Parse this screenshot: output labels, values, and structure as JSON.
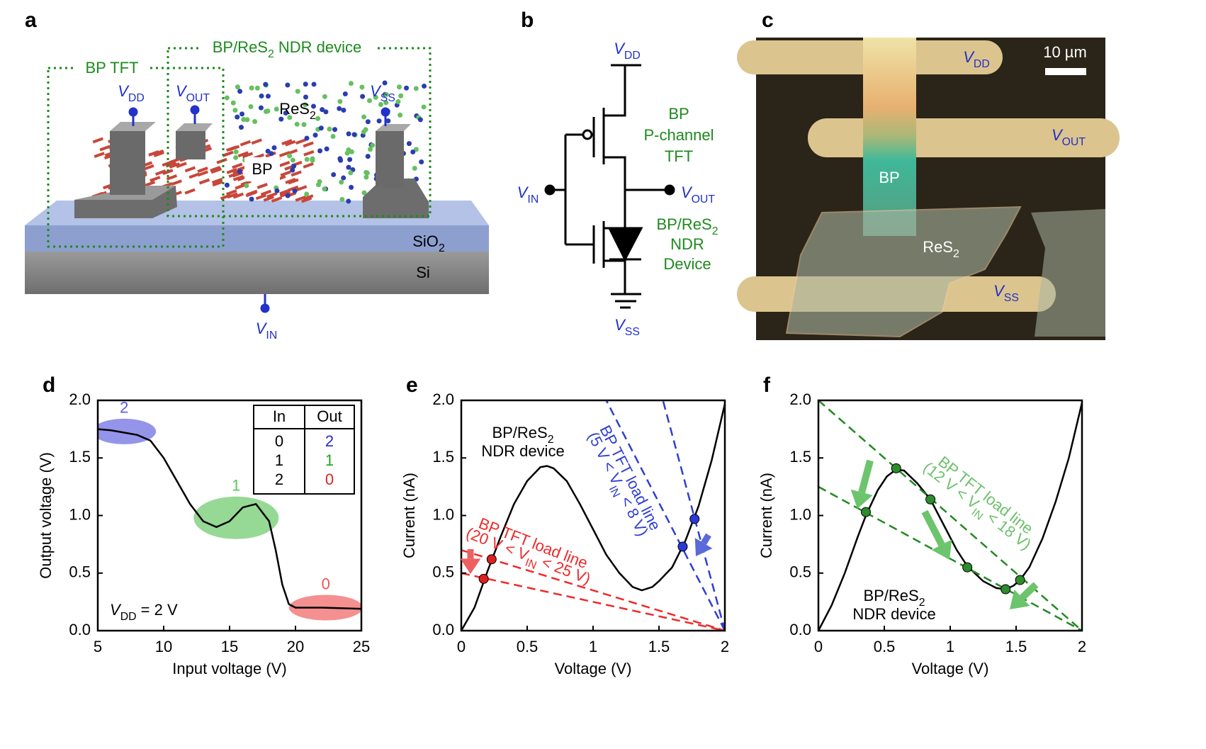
{
  "panel_labels": [
    "a",
    "b",
    "c",
    "d",
    "e",
    "f"
  ],
  "diagram_a": {
    "bp_tft": "BP TFT",
    "ndr_device": [
      "BP/ReS",
      "2",
      " NDR device"
    ],
    "vdd": [
      "V",
      "DD"
    ],
    "vout": [
      "V",
      "OUT"
    ],
    "vss": [
      "V",
      "SS"
    ],
    "res2": [
      "ReS",
      "2"
    ],
    "bp": "BP",
    "sio2": [
      "SiO",
      "2"
    ],
    "si": "Si",
    "vin": [
      "V",
      "IN"
    ]
  },
  "circuit_b": {
    "vdd": [
      "V",
      "DD"
    ],
    "tft_lines": [
      "BP",
      "P-channel",
      "TFT"
    ],
    "vin": [
      "V",
      "IN"
    ],
    "vout": [
      "V",
      "OUT"
    ],
    "ndr_lines": [
      [
        "BP/ReS",
        "2"
      ],
      "NDR",
      "Device"
    ],
    "vss": [
      "V",
      "SS"
    ]
  },
  "micrograph_c": {
    "vdd": [
      "V",
      "DD"
    ],
    "scale_bar": "10 µm",
    "vout": [
      "V",
      "OUT"
    ],
    "bp": "BP",
    "res2": [
      "ReS",
      "2"
    ],
    "vss": [
      "V",
      "SS"
    ]
  },
  "chart_data": [
    {
      "type": "line",
      "x_label": "Input voltage (V)",
      "y_label": "Output voltage (V)",
      "color": "#000000",
      "x": [
        5,
        6,
        7,
        8,
        9,
        10,
        11,
        12,
        13,
        14,
        15,
        16,
        17,
        18,
        18.5,
        19,
        19.5,
        20,
        22,
        25
      ],
      "values": [
        1.75,
        1.74,
        1.72,
        1.7,
        1.65,
        1.5,
        1.3,
        1.1,
        0.95,
        0.9,
        0.95,
        1.07,
        1.1,
        0.95,
        0.7,
        0.4,
        0.23,
        0.2,
        0.2,
        0.19
      ],
      "xlim": [
        5,
        25
      ],
      "ylim": [
        0,
        2
      ],
      "xticks": [
        5,
        10,
        15,
        20,
        25
      ],
      "yticks": [
        {
          "value": 0,
          "label": "0.0"
        },
        {
          "value": 0.5,
          "label": "0.5"
        },
        {
          "value": 1,
          "label": "1.0"
        },
        {
          "value": 1.5,
          "label": "1.5"
        },
        {
          "value": 2,
          "label": "2.0"
        }
      ],
      "highlights": [
        {
          "label": "2",
          "x": 7,
          "y": 1.73,
          "color": "#5a5ae0"
        },
        {
          "label": "1",
          "x": 15.5,
          "y": 0.98,
          "color": "#5cc45c"
        },
        {
          "label": "0",
          "x": 22.3,
          "y": 0.2,
          "color": "#ee5555"
        }
      ],
      "annotation": [
        "V",
        "DD",
        " = 2 V"
      ],
      "table": {
        "header": [
          "In",
          "Out"
        ],
        "rows": [
          [
            "0",
            "2"
          ],
          [
            "1",
            "1"
          ],
          [
            "2",
            "0"
          ]
        ],
        "out_colors": [
          "#2a2ad0",
          "#22a022",
          "#dd2222"
        ]
      }
    },
    {
      "type": "line",
      "x_label": "Voltage (V)",
      "y_label": "Current (nA)",
      "xlim": [
        0,
        2
      ],
      "ylim": [
        0,
        2
      ],
      "xticks": [
        0,
        0.5,
        1,
        1.5,
        2
      ],
      "yticks": [
        {
          "value": 0,
          "label": "0.0"
        },
        {
          "value": 0.5,
          "label": "0.5"
        },
        {
          "value": 1,
          "label": "1.0"
        },
        {
          "value": 1.5,
          "label": "1.5"
        },
        {
          "value": 2,
          "label": "2.0"
        }
      ],
      "series": [
        {
          "style": "solid",
          "color": "#000000",
          "x": [
            0,
            0.1,
            0.2,
            0.3,
            0.4,
            0.5,
            0.6,
            0.65,
            0.7,
            0.8,
            0.9,
            1.0,
            1.1,
            1.2,
            1.3,
            1.37,
            1.45,
            1.5,
            1.6,
            1.7,
            1.8,
            1.9,
            2.0
          ],
          "values": [
            0,
            0.2,
            0.52,
            0.82,
            1.1,
            1.3,
            1.42,
            1.43,
            1.41,
            1.3,
            1.1,
            0.88,
            0.66,
            0.5,
            0.38,
            0.35,
            0.38,
            0.43,
            0.55,
            0.78,
            1.08,
            1.48,
            1.97
          ]
        },
        {
          "style": "dashed",
          "color": "#2f3fd0",
          "x": [
            2,
            1.1
          ],
          "values": [
            0,
            2
          ]
        },
        {
          "style": "dashed",
          "color": "#2f3fd0",
          "x": [
            2,
            1.53
          ],
          "values": [
            0,
            2
          ]
        },
        {
          "style": "dashed",
          "color": "#ee2a2a",
          "x": [
            0,
            2
          ],
          "values": [
            0.7,
            0
          ]
        },
        {
          "style": "dashed",
          "color": "#ee2a2a",
          "x": [
            0,
            2
          ],
          "values": [
            0.5,
            0
          ]
        },
        {
          "style": "markers",
          "color": "#dd2020",
          "x": [
            0.17,
            0.23
          ],
          "values": [
            0.45,
            0.62
          ]
        },
        {
          "style": "markers",
          "color": "#2a3ad8",
          "x": [
            1.68,
            1.77
          ],
          "values": [
            0.73,
            0.97
          ]
        }
      ],
      "curve_label": [
        [
          "BP/ReS",
          "2"
        ],
        "NDR device"
      ],
      "load_labels": [
        {
          "color": "#2f3fd0",
          "lines": [
            "BP TFT load line",
            [
              "(5 V < V",
              "IN",
              " < 8 V)"
            ]
          ]
        },
        {
          "color": "#ee2a2a",
          "lines": [
            "BP TFT load line",
            [
              "(20 V < V",
              "IN",
              " < 25 V)"
            ]
          ]
        }
      ]
    },
    {
      "type": "line",
      "x_label": "Voltage (V)",
      "y_label": "Current (nA)",
      "xlim": [
        0,
        2
      ],
      "ylim": [
        0,
        2
      ],
      "xticks": [
        0,
        0.5,
        1,
        1.5,
        2
      ],
      "yticks": [
        {
          "value": 0,
          "label": "0.0"
        },
        {
          "value": 0.5,
          "label": "0.5"
        },
        {
          "value": 1,
          "label": "1.0"
        },
        {
          "value": 1.5,
          "label": "1.5"
        },
        {
          "value": 2,
          "label": "2.0"
        }
      ],
      "series": [
        {
          "style": "solid",
          "color": "#000000",
          "x": [
            0,
            0.1,
            0.2,
            0.3,
            0.36,
            0.45,
            0.52,
            0.59,
            0.65,
            0.75,
            0.85,
            0.95,
            1.05,
            1.13,
            1.25,
            1.35,
            1.42,
            1.48,
            1.53,
            1.6,
            1.7,
            1.8,
            1.9,
            2.0
          ],
          "values": [
            0,
            0.22,
            0.5,
            0.82,
            1.0,
            1.22,
            1.34,
            1.4,
            1.39,
            1.28,
            1.14,
            0.92,
            0.7,
            0.56,
            0.43,
            0.37,
            0.36,
            0.39,
            0.44,
            0.55,
            0.8,
            1.12,
            1.5,
            1.98
          ]
        },
        {
          "style": "dashed",
          "color": "#228a22",
          "x": [
            0,
            2
          ],
          "values": [
            2,
            0
          ]
        },
        {
          "style": "dashed",
          "color": "#228a22",
          "x": [
            0,
            2
          ],
          "values": [
            1.25,
            0
          ]
        },
        {
          "style": "markers",
          "color": "#2e8b2e",
          "x": [
            0.36,
            0.59,
            0.85,
            1.13,
            1.42,
            1.53
          ],
          "values": [
            1.03,
            1.41,
            1.14,
            0.55,
            0.36,
            0.44
          ]
        }
      ],
      "curve_label": [
        [
          "BP/ReS",
          "2"
        ],
        "NDR device"
      ],
      "load_labels": [
        {
          "color": "#6cc06c",
          "lines": [
            "BP TFT load line",
            [
              "(12 V < V",
              "IN",
              " < 18 V)"
            ]
          ]
        }
      ]
    }
  ]
}
